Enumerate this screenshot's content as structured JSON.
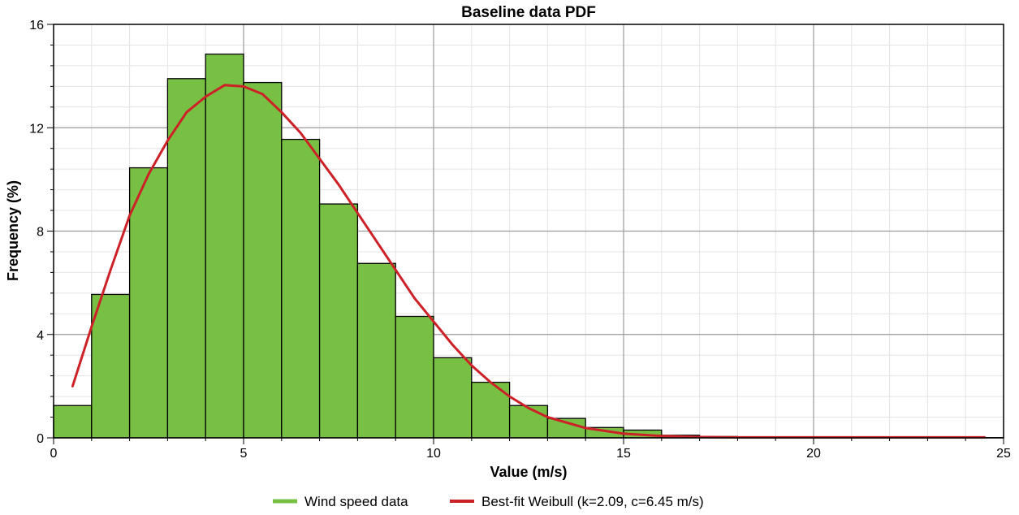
{
  "chart_data": {
    "type": "bar",
    "title": "Baseline data PDF",
    "xlabel": "Value (m/s)",
    "ylabel": "Frequency (%)",
    "xlim": [
      0,
      25
    ],
    "ylim": [
      0,
      16
    ],
    "xticks": [
      0,
      5,
      10,
      15,
      20,
      25
    ],
    "yticks": [
      0,
      4,
      8,
      12,
      16
    ],
    "grid": true,
    "legend_position": "bottom",
    "histogram": {
      "name": "Wind speed data",
      "color": "#77c043",
      "bin_width": 1,
      "bin_starts": [
        0,
        1,
        2,
        3,
        4,
        5,
        6,
        7,
        8,
        9,
        10,
        11,
        12,
        13,
        14,
        15,
        16,
        17,
        18,
        19,
        20,
        21,
        22,
        23,
        24
      ],
      "values": [
        1.25,
        5.55,
        10.45,
        13.9,
        14.85,
        13.75,
        11.55,
        9.05,
        6.75,
        4.7,
        3.1,
        2.15,
        1.25,
        0.75,
        0.4,
        0.3,
        0.1,
        0.05,
        0.02,
        0.01,
        0.01,
        0.01,
        0.01,
        0.01,
        0.01
      ]
    },
    "fit_curve": {
      "name": "Best-fit Weibull (k=2.09, c=6.45 m/s)",
      "color": "#cc2127",
      "x": [
        0.5,
        1.0,
        1.5,
        2.0,
        2.5,
        3.0,
        3.5,
        4.0,
        4.5,
        5.0,
        5.5,
        6.0,
        6.5,
        7.0,
        7.5,
        8.0,
        8.5,
        9.0,
        9.5,
        10.0,
        10.5,
        11.0,
        11.5,
        12.0,
        12.5,
        13.0,
        14.0,
        15.0,
        16.0,
        17.0,
        18.0,
        20.0,
        22.0,
        24.5
      ],
      "y": [
        2.0,
        4.3,
        6.5,
        8.6,
        10.2,
        11.5,
        12.6,
        13.2,
        13.65,
        13.6,
        13.3,
        12.6,
        11.8,
        10.8,
        9.8,
        8.7,
        7.6,
        6.5,
        5.4,
        4.5,
        3.6,
        2.8,
        2.15,
        1.6,
        1.15,
        0.8,
        0.38,
        0.16,
        0.07,
        0.03,
        0.02,
        0.02,
        0.02,
        0.02
      ]
    }
  }
}
